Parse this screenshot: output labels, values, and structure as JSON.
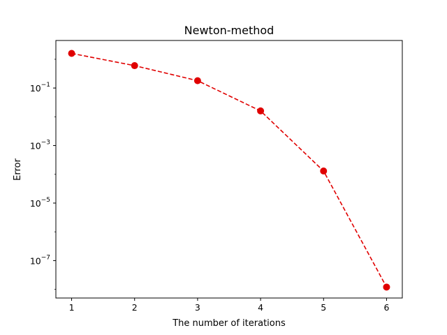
{
  "chart_data": {
    "type": "line",
    "title": "Newton-method",
    "xlabel": "The number of iterations",
    "ylabel": "Error",
    "yscale": "log",
    "grid": false,
    "x": [
      1,
      2,
      3,
      4,
      5,
      6
    ],
    "series": [
      {
        "values": [
          1.6,
          0.6,
          0.18,
          0.016,
          0.00013,
          1.2e-08
        ],
        "color": "#e00000",
        "line_style": "dashed",
        "marker": "circle"
      }
    ],
    "xlim": [
      0.75,
      6.25
    ],
    "ylim": [
      5e-09,
      4.5
    ],
    "x_ticks": [
      1,
      2,
      3,
      4,
      5,
      6
    ],
    "y_ticks": [
      {
        "value": 0.1,
        "base": "10",
        "exp": "−1"
      },
      {
        "value": 0.001,
        "base": "10",
        "exp": "−3"
      },
      {
        "value": 1e-05,
        "base": "10",
        "exp": "−5"
      },
      {
        "value": 1e-07,
        "base": "10",
        "exp": "−7"
      }
    ]
  }
}
